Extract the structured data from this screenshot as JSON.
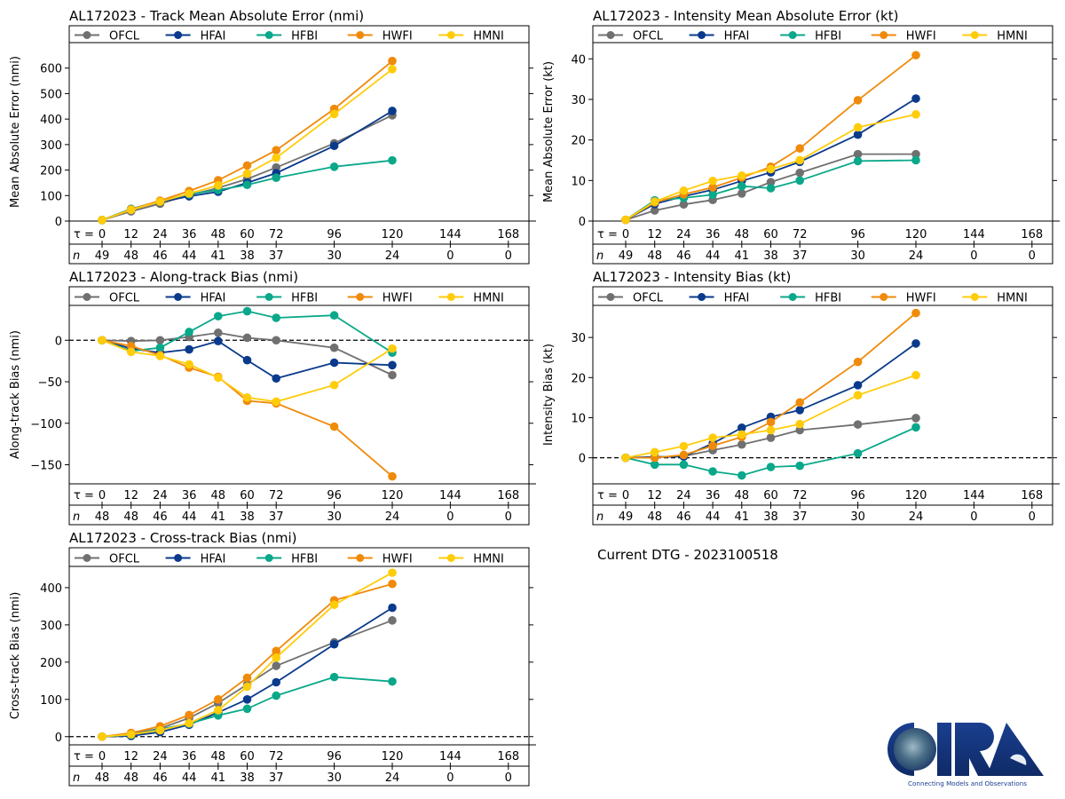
{
  "figure": {
    "dtg_label": "Current DTG - 2023100518",
    "logo": {
      "name": "CIRA",
      "tagline": "Connecting Models and Observations"
    }
  },
  "colors": {
    "OFCL": "#707070",
    "HFAI": "#0a3a8c",
    "HFBI": "#0aa88a",
    "HWFI": "#f08a0a",
    "HMNI": "#ffcc0a"
  },
  "chart_data": [
    {
      "id": "track_mae",
      "type": "line",
      "title": "AL172023 - Track Mean Absolute Error (nmi)",
      "xlabel": "",
      "ylabel": "Mean Absolute Error (nmi)",
      "ylim": [
        0,
        700
      ],
      "yticks": [
        0,
        100,
        200,
        300,
        400,
        500,
        600
      ],
      "zero_line": false,
      "legend": [
        "OFCL",
        "HFAI",
        "HFBI",
        "HWFI",
        "HMNI"
      ],
      "legend_position": "top",
      "tau_label": "τ =",
      "n_label": "n",
      "tau": [
        0,
        12,
        24,
        36,
        48,
        60,
        72,
        96,
        120,
        144,
        168
      ],
      "n": [
        49,
        48,
        46,
        44,
        41,
        38,
        37,
        30,
        24,
        0,
        0
      ],
      "x": [
        0,
        12,
        24,
        36,
        48,
        60,
        72,
        96,
        120
      ],
      "series": [
        {
          "name": "OFCL",
          "values": [
            4,
            38,
            68,
            102,
            130,
            165,
            210,
            305,
            415
          ]
        },
        {
          "name": "HFAI",
          "values": [
            4,
            45,
            75,
            97,
            115,
            150,
            188,
            295,
            432
          ]
        },
        {
          "name": "HFBI",
          "values": [
            4,
            48,
            78,
            105,
            122,
            142,
            170,
            213,
            238
          ]
        },
        {
          "name": "HWFI",
          "values": [
            4,
            46,
            80,
            118,
            160,
            218,
            278,
            440,
            628
          ]
        },
        {
          "name": "HMNI",
          "values": [
            4,
            44,
            76,
            108,
            140,
            186,
            248,
            420,
            596
          ]
        }
      ]
    },
    {
      "id": "intensity_mae",
      "type": "line",
      "title": "AL172023 - Intensity Mean Absolute Error (kt)",
      "xlabel": "",
      "ylabel": "Mean Absolute Error (kt)",
      "ylim": [
        0,
        44
      ],
      "yticks": [
        0,
        10,
        20,
        30,
        40
      ],
      "zero_line": false,
      "legend": [
        "OFCL",
        "HFAI",
        "HFBI",
        "HWFI",
        "HMNI"
      ],
      "legend_position": "top",
      "tau_label": "τ =",
      "n_label": "n",
      "tau": [
        0,
        12,
        24,
        36,
        48,
        60,
        72,
        96,
        120,
        144,
        168
      ],
      "n": [
        49,
        48,
        46,
        44,
        41,
        38,
        37,
        30,
        24,
        0,
        0
      ],
      "x": [
        0,
        12,
        24,
        36,
        48,
        60,
        72,
        96,
        120
      ],
      "series": [
        {
          "name": "OFCL",
          "values": [
            0.3,
            2.6,
            4.1,
            5.2,
            6.8,
            9.6,
            11.9,
            16.5,
            16.5
          ]
        },
        {
          "name": "HFAI",
          "values": [
            0.3,
            4.2,
            6.1,
            7.7,
            9.9,
            12.0,
            14.6,
            21.3,
            30.2
          ]
        },
        {
          "name": "HFBI",
          "values": [
            0.3,
            5.1,
            5.7,
            6.5,
            8.6,
            8.1,
            10.0,
            14.8,
            15.0
          ]
        },
        {
          "name": "HWFI",
          "values": [
            0.3,
            4.6,
            6.6,
            8.3,
            10.7,
            13.4,
            17.9,
            29.8,
            40.9
          ]
        },
        {
          "name": "HMNI",
          "values": [
            0.3,
            4.8,
            7.5,
            9.9,
            11.2,
            12.8,
            15.0,
            23.1,
            26.3
          ]
        }
      ]
    },
    {
      "id": "along_track_bias",
      "type": "line",
      "title": "AL172023 - Along-track Bias (nmi)",
      "xlabel": "",
      "ylabel": "Along-track Bias (nmi)",
      "ylim": [
        -173,
        42
      ],
      "yticks": [
        -150,
        -100,
        -50,
        0
      ],
      "zero_line": true,
      "legend": [
        "OFCL",
        "HFAI",
        "HFBI",
        "HWFI",
        "HMNI"
      ],
      "legend_position": "top",
      "tau_label": "τ =",
      "n_label": "n",
      "tau": [
        0,
        12,
        24,
        36,
        48,
        60,
        72,
        96,
        120,
        144,
        168
      ],
      "n": [
        48,
        48,
        46,
        44,
        41,
        38,
        37,
        30,
        24,
        0,
        0
      ],
      "x": [
        0,
        12,
        24,
        36,
        48,
        60,
        72,
        96,
        120
      ],
      "series": [
        {
          "name": "OFCL",
          "values": [
            0,
            -1,
            0,
            4,
            9,
            3,
            0,
            -9,
            -42
          ]
        },
        {
          "name": "HFAI",
          "values": [
            0,
            -10,
            -15,
            -11,
            -1,
            -24,
            -46,
            -27,
            -30
          ]
        },
        {
          "name": "HFBI",
          "values": [
            0,
            -13,
            -9,
            10,
            29,
            35,
            27,
            30,
            -15
          ]
        },
        {
          "name": "HWFI",
          "values": [
            0,
            -7,
            -18,
            -33,
            -44,
            -73,
            -76,
            -104,
            -164
          ]
        },
        {
          "name": "HMNI",
          "values": [
            0,
            -14,
            -19,
            -29,
            -45,
            -69,
            -74,
            -54,
            -10
          ]
        }
      ]
    },
    {
      "id": "intensity_bias",
      "type": "line",
      "title": "AL172023 - Intensity Bias (kt)",
      "xlabel": "",
      "ylabel": "Intensity Bias (kt)",
      "ylim": [
        -6.5,
        38
      ],
      "yticks": [
        0,
        10,
        20,
        30
      ],
      "zero_line": true,
      "legend": [
        "OFCL",
        "HFAI",
        "HFBI",
        "HWFI",
        "HMNI"
      ],
      "legend_position": "top",
      "tau_label": "τ =",
      "n_label": "n",
      "tau": [
        0,
        12,
        24,
        36,
        48,
        60,
        72,
        96,
        120,
        144,
        168
      ],
      "n": [
        49,
        48,
        46,
        44,
        41,
        38,
        37,
        30,
        24,
        0,
        0
      ],
      "x": [
        0,
        12,
        24,
        36,
        48,
        60,
        72,
        96,
        120
      ],
      "series": [
        {
          "name": "OFCL",
          "values": [
            0,
            0.1,
            0.4,
            1.9,
            3.3,
            5.0,
            6.9,
            8.3,
            9.9
          ]
        },
        {
          "name": "HFAI",
          "values": [
            0,
            0.2,
            0.3,
            3.6,
            7.5,
            10.2,
            11.9,
            18.1,
            28.5
          ]
        },
        {
          "name": "HFBI",
          "values": [
            0,
            -1.7,
            -1.7,
            -3.4,
            -4.4,
            -2.3,
            -2.0,
            1.1,
            7.6
          ]
        },
        {
          "name": "HWFI",
          "values": [
            0,
            0.0,
            0.7,
            3.0,
            5.2,
            8.9,
            13.8,
            23.9,
            36.1
          ]
        },
        {
          "name": "HMNI",
          "values": [
            0,
            1.4,
            2.9,
            5.0,
            5.8,
            6.9,
            8.4,
            15.6,
            20.6
          ]
        }
      ]
    },
    {
      "id": "cross_track_bias",
      "type": "line",
      "title": "AL172023 - Cross-track Bias (nmi)",
      "xlabel": "",
      "ylabel": "Cross-track Bias (nmi)",
      "ylim": [
        -22,
        457
      ],
      "yticks": [
        0,
        100,
        200,
        300,
        400
      ],
      "zero_line": true,
      "legend": [
        "OFCL",
        "HFAI",
        "HFBI",
        "HWFI",
        "HMNI"
      ],
      "legend_position": "top",
      "tau_label": "τ =",
      "n_label": "n",
      "tau": [
        0,
        12,
        24,
        36,
        48,
        60,
        72,
        96,
        120,
        144,
        168
      ],
      "n": [
        48,
        48,
        46,
        44,
        41,
        38,
        37,
        30,
        24,
        0,
        0
      ],
      "x": [
        0,
        12,
        24,
        36,
        48,
        60,
        72,
        96,
        120
      ],
      "series": [
        {
          "name": "OFCL",
          "values": [
            0,
            7,
            22,
            50,
            90,
            140,
            190,
            253,
            312
          ]
        },
        {
          "name": "HFAI",
          "values": [
            0,
            2,
            12,
            32,
            65,
            100,
            146,
            248,
            346
          ]
        },
        {
          "name": "HFBI",
          "values": [
            0,
            5,
            20,
            35,
            57,
            75,
            110,
            160,
            148
          ]
        },
        {
          "name": "HWFI",
          "values": [
            0,
            10,
            28,
            58,
            100,
            158,
            230,
            366,
            410
          ]
        },
        {
          "name": "HMNI",
          "values": [
            0,
            6,
            17,
            36,
            71,
            134,
            212,
            354,
            440
          ]
        }
      ]
    }
  ]
}
